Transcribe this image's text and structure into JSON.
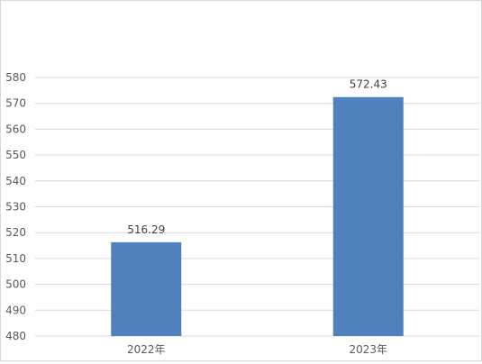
{
  "chart_data": {
    "type": "bar",
    "categories": [
      "2022年",
      "2023年"
    ],
    "values": [
      516.29,
      572.43
    ],
    "value_labels": [
      "516.29",
      "572.43"
    ],
    "title": "",
    "xlabel": "",
    "ylabel": "",
    "ylim": [
      480,
      580
    ],
    "yticks": [
      480,
      490,
      500,
      510,
      520,
      530,
      540,
      550,
      560,
      570,
      580
    ],
    "grid": true,
    "legend": "none",
    "bar_color": "#4f81bd",
    "grid_color": "#d9d9d9",
    "text_color": "#595959",
    "label_color": "#404040"
  }
}
